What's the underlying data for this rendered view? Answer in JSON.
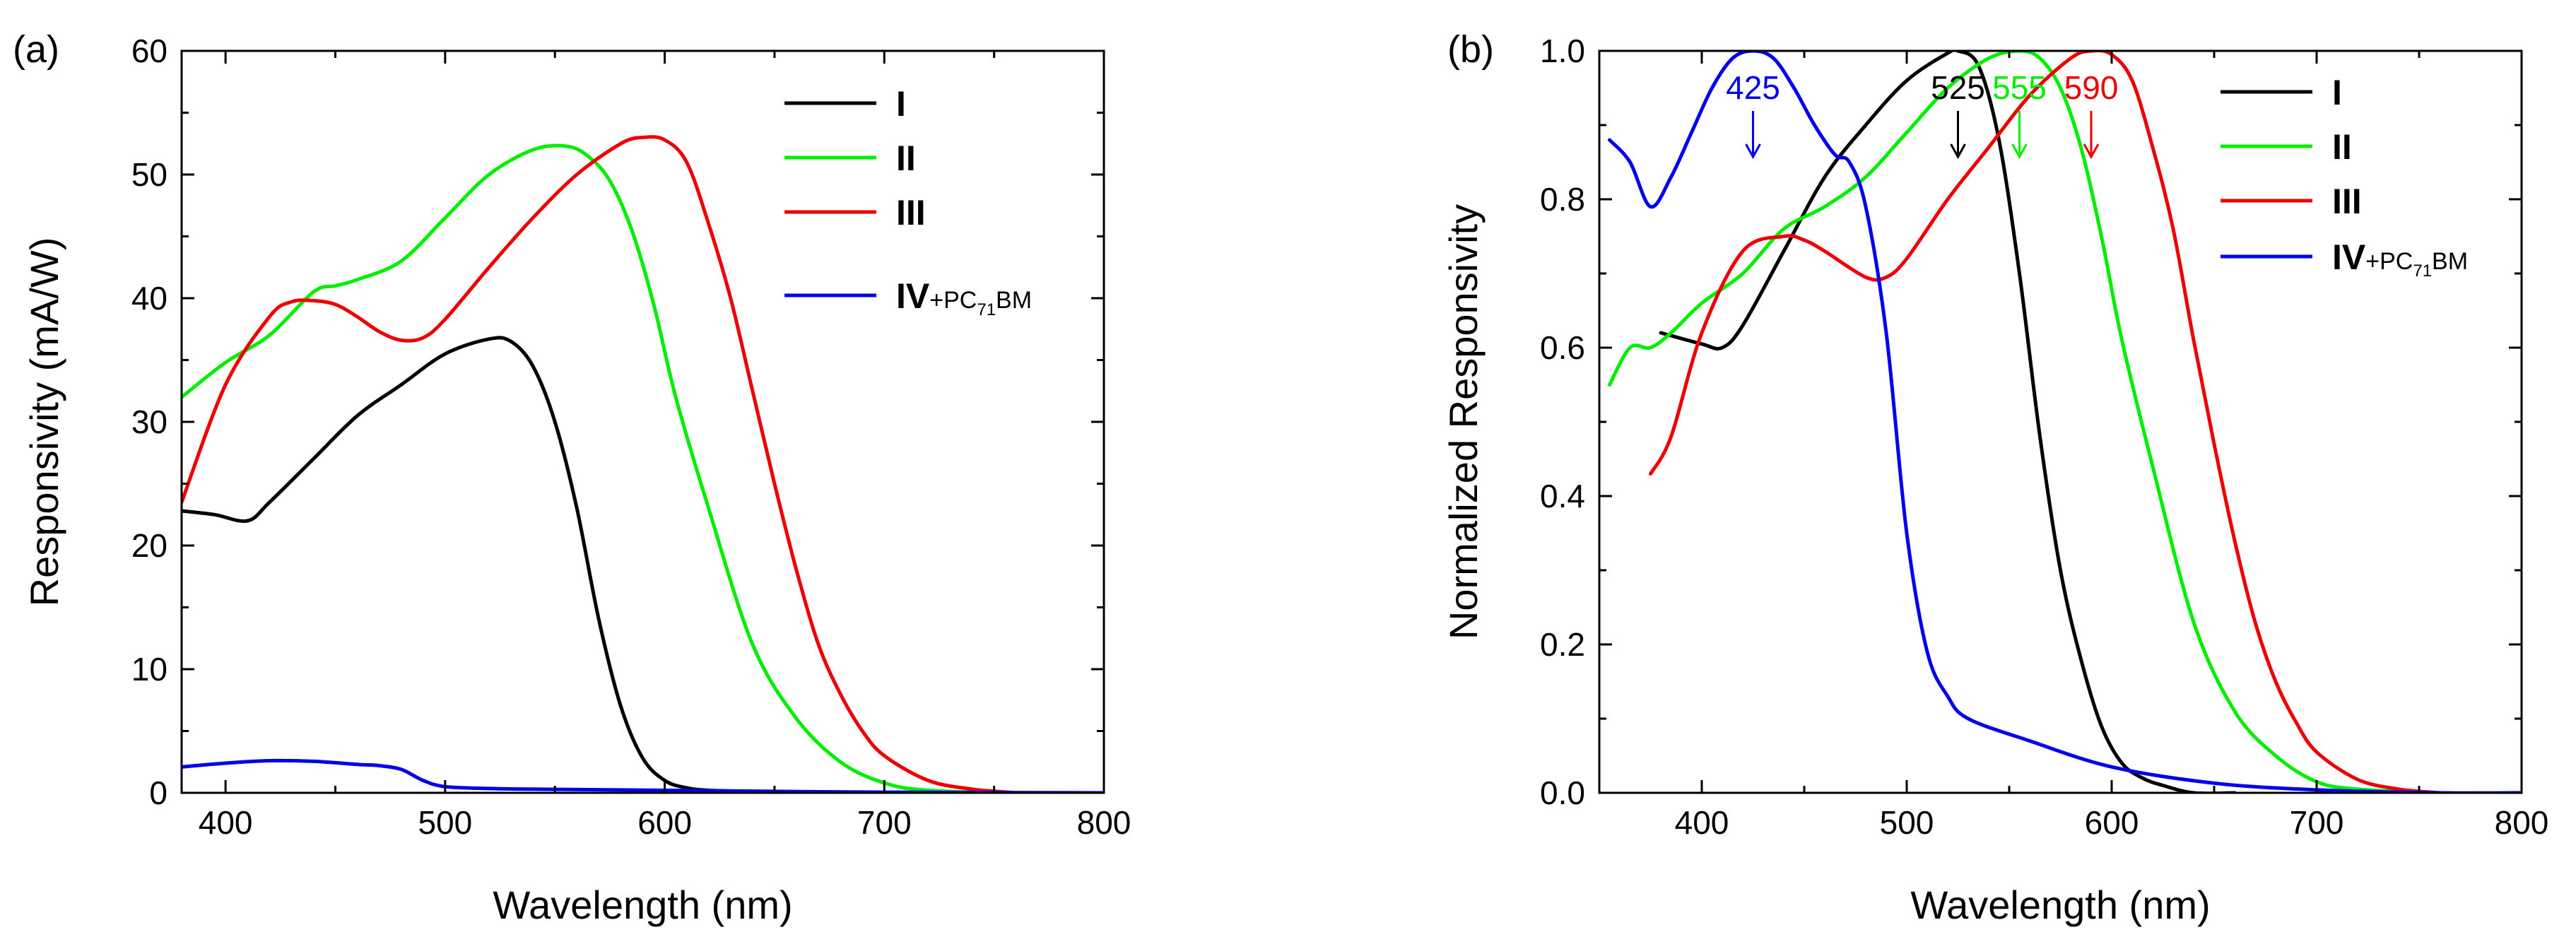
{
  "chart_data": [
    {
      "panel_label": "(a)",
      "type": "line",
      "title": "",
      "xlabel": "Wavelength (nm)",
      "ylabel": "Responsivity (mA/W)",
      "xlim": [
        380,
        800
      ],
      "ylim": [
        0,
        60
      ],
      "xticks": [
        400,
        500,
        600,
        700,
        800
      ],
      "yticks": [
        0,
        10,
        20,
        30,
        40,
        50,
        60
      ],
      "xtick_labels": [
        "400",
        "500",
        "600",
        "700",
        "800"
      ],
      "ytick_labels": [
        "0",
        "10",
        "20",
        "30",
        "40",
        "50",
        "60"
      ],
      "grid": false,
      "legend_position": "top-right",
      "series": [
        {
          "name": "I",
          "color": "#000000",
          "x": [
            380,
            395,
            410,
            420,
            440,
            460,
            480,
            500,
            520,
            530,
            540,
            550,
            560,
            570,
            580,
            590,
            600,
            610,
            620,
            640,
            660
          ],
          "y": [
            22.8,
            22.5,
            22,
            23.5,
            27,
            30.5,
            33,
            35.5,
            36.7,
            36.5,
            34.5,
            30,
            23,
            14,
            7,
            2.8,
            1.0,
            0.4,
            0.2,
            0.1,
            0.0
          ]
        },
        {
          "name": "II",
          "color": "#00ee00",
          "x": [
            380,
            400,
            420,
            440,
            450,
            460,
            480,
            500,
            520,
            540,
            555,
            565,
            575,
            585,
            595,
            605,
            620,
            640,
            660,
            680,
            700,
            720,
            760,
            800
          ],
          "y": [
            32,
            34.8,
            37,
            40.5,
            41,
            41.5,
            43,
            46.5,
            50,
            52,
            52.3,
            51.5,
            49.5,
            45.5,
            39.5,
            32,
            23,
            12,
            6,
            2.5,
            0.8,
            0.2,
            0.0,
            0.0
          ]
        },
        {
          "name": "III",
          "color": "#ee0000",
          "x": [
            380,
            400,
            420,
            430,
            440,
            450,
            460,
            470,
            480,
            490,
            500,
            520,
            540,
            560,
            580,
            590,
            600,
            610,
            620,
            630,
            640,
            650,
            660,
            670,
            680,
            690,
            700,
            720,
            740,
            760
          ],
          "y": [
            23.5,
            33,
            38.5,
            39.7,
            39.8,
            39.5,
            38.5,
            37.3,
            36.6,
            36.8,
            38.3,
            42.5,
            46.5,
            50,
            52.5,
            53,
            52.8,
            51,
            46,
            40,
            32.5,
            25,
            18,
            12,
            8,
            5,
            3,
            1,
            0.3,
            0.0
          ]
        },
        {
          "name": "IV+PC71BM",
          "color": "#0000ee",
          "x": [
            380,
            400,
            420,
            440,
            460,
            470,
            480,
            490,
            500,
            520,
            540,
            600,
            700,
            800
          ],
          "y": [
            2.1,
            2.4,
            2.6,
            2.55,
            2.3,
            2.2,
            1.9,
            1.0,
            0.5,
            0.35,
            0.3,
            0.2,
            0.05,
            0.0
          ]
        }
      ]
    },
    {
      "panel_label": "(b)",
      "type": "line",
      "title": "",
      "xlabel": "Wavelength (nm)",
      "ylabel": "Normalized Responsivity",
      "xlim": [
        350,
        800
      ],
      "ylim": [
        0.0,
        1.0
      ],
      "xticks": [
        400,
        500,
        600,
        700,
        800
      ],
      "yticks": [
        0.0,
        0.2,
        0.4,
        0.6,
        0.8,
        1.0
      ],
      "xtick_labels": [
        "400",
        "500",
        "600",
        "700",
        "800"
      ],
      "ytick_labels": [
        "0.0",
        "0.2",
        "0.4",
        "0.6",
        "0.8",
        "1.0"
      ],
      "grid": false,
      "legend_position": "top-right",
      "annotations": [
        {
          "text": "425",
          "x": 425,
          "color": "#0000ee"
        },
        {
          "text": "525",
          "x": 525,
          "color": "#000000"
        },
        {
          "text": "555",
          "x": 555,
          "color": "#00ee00"
        },
        {
          "text": "590",
          "x": 590,
          "color": "#ee0000"
        }
      ],
      "series": [
        {
          "name": "I",
          "color": "#000000",
          "x": [
            380,
            400,
            410,
            420,
            440,
            460,
            480,
            500,
            520,
            525,
            535,
            545,
            555,
            565,
            575,
            585,
            595,
            605,
            615,
            625,
            640,
            660
          ],
          "y": [
            0.62,
            0.605,
            0.6,
            0.63,
            0.73,
            0.83,
            0.9,
            0.96,
            0.997,
            1.0,
            0.98,
            0.88,
            0.7,
            0.48,
            0.3,
            0.18,
            0.09,
            0.04,
            0.02,
            0.01,
            0.0,
            0.0
          ]
        },
        {
          "name": "II",
          "color": "#00ee00",
          "x": [
            355,
            365,
            375,
            385,
            400,
            420,
            440,
            460,
            480,
            500,
            520,
            540,
            555,
            565,
            575,
            585,
            595,
            605,
            620,
            640,
            660,
            680,
            700,
            720,
            760,
            800
          ],
          "y": [
            0.55,
            0.6,
            0.6,
            0.62,
            0.66,
            0.7,
            0.76,
            0.79,
            0.83,
            0.89,
            0.95,
            0.99,
            1.0,
            0.99,
            0.95,
            0.87,
            0.75,
            0.61,
            0.44,
            0.23,
            0.11,
            0.05,
            0.015,
            0.005,
            0.0,
            0.0
          ]
        },
        {
          "name": "III",
          "color": "#ee0000",
          "x": [
            375,
            385,
            400,
            420,
            440,
            450,
            460,
            480,
            490,
            500,
            520,
            540,
            560,
            580,
            590,
            600,
            610,
            620,
            630,
            640,
            650,
            660,
            670,
            680,
            690,
            700,
            720,
            740,
            760
          ],
          "y": [
            0.43,
            0.48,
            0.62,
            0.73,
            0.75,
            0.745,
            0.73,
            0.695,
            0.695,
            0.72,
            0.8,
            0.87,
            0.94,
            0.99,
            1.0,
            0.995,
            0.96,
            0.87,
            0.76,
            0.61,
            0.47,
            0.34,
            0.23,
            0.15,
            0.095,
            0.055,
            0.018,
            0.005,
            0.0
          ]
        },
        {
          "name": "IV+PC71BM",
          "color": "#0000ee",
          "x": [
            355,
            365,
            375,
            385,
            395,
            405,
            415,
            425,
            435,
            445,
            455,
            465,
            472,
            480,
            490,
            500,
            510,
            520,
            530,
            560,
            600,
            650,
            700,
            760,
            800
          ],
          "y": [
            0.88,
            0.85,
            0.79,
            0.83,
            0.89,
            0.95,
            0.99,
            1.0,
            0.99,
            0.95,
            0.9,
            0.86,
            0.85,
            0.79,
            0.62,
            0.35,
            0.19,
            0.13,
            0.1,
            0.07,
            0.035,
            0.013,
            0.004,
            0.0,
            0.0
          ]
        }
      ]
    }
  ]
}
